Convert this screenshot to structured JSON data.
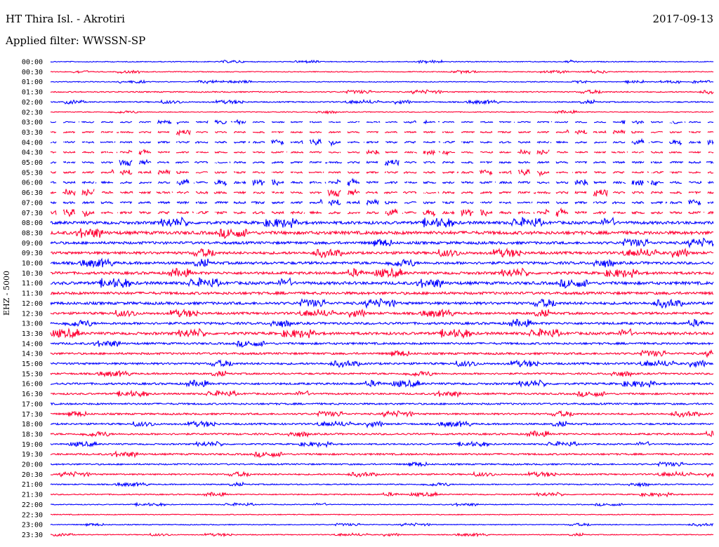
{
  "header": {
    "station": "HT Thira Isl. - Akrotiri",
    "date": "2017-09-13",
    "filter": "Applied filter: WWSSN-SP"
  },
  "channel_label": "EHZ - 5000",
  "colors": {
    "odd": "#0000ff",
    "even": "#ff0033"
  },
  "chart_data": {
    "type": "line",
    "title": "HT Thira Isl. - Akrotiri",
    "ylabel": "EHZ - 5000",
    "rows": [
      "00:00",
      "00:30",
      "01:00",
      "01:30",
      "02:00",
      "02:30",
      "03:00",
      "03:30",
      "04:00",
      "04:30",
      "05:00",
      "05:30",
      "06:00",
      "06:30",
      "07:00",
      "07:30",
      "08:00",
      "08:30",
      "09:00",
      "09:30",
      "10:00",
      "10:30",
      "11:00",
      "11:30",
      "12:00",
      "12:30",
      "13:00",
      "13:30",
      "14:00",
      "14:30",
      "15:00",
      "15:30",
      "16:00",
      "16:30",
      "17:00",
      "17:30",
      "18:00",
      "18:30",
      "19:00",
      "19:30",
      "20:00",
      "20:30",
      "21:00",
      "21:30",
      "22:00",
      "22:30",
      "23:00",
      "23:30"
    ],
    "noise_level": [
      0.15,
      0.15,
      0.15,
      0.2,
      0.2,
      0.15,
      0.2,
      0.25,
      0.3,
      0.25,
      0.3,
      0.3,
      0.35,
      0.35,
      0.35,
      0.4,
      0.5,
      0.55,
      0.45,
      0.45,
      0.45,
      0.45,
      0.5,
      0.45,
      0.45,
      0.4,
      0.4,
      0.45,
      0.35,
      0.35,
      0.35,
      0.3,
      0.35,
      0.3,
      0.3,
      0.3,
      0.3,
      0.3,
      0.25,
      0.3,
      0.25,
      0.25,
      0.2,
      0.2,
      0.15,
      0.15,
      0.15,
      0.15
    ],
    "gapped_rows": [
      6,
      7,
      8,
      9,
      10,
      11,
      12,
      13,
      14,
      15
    ]
  }
}
